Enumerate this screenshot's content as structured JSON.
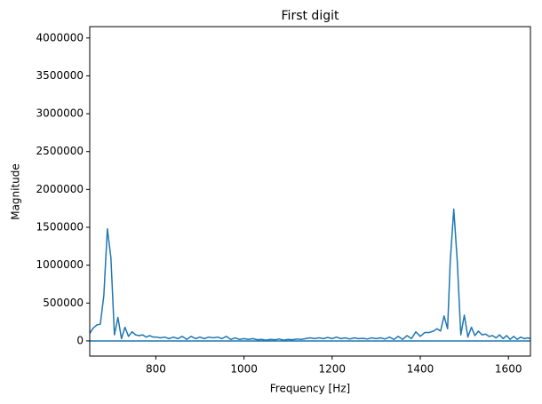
{
  "chart_data": {
    "type": "line",
    "title": "First digit",
    "x_label": "Frequency [Hz]",
    "y_label": "Magnitude",
    "x": [
      650,
      658,
      666,
      674,
      682,
      690,
      698,
      706,
      714,
      722,
      730,
      738,
      746,
      754,
      762,
      770,
      778,
      786,
      794,
      802,
      810,
      820,
      830,
      840,
      850,
      860,
      870,
      880,
      890,
      900,
      910,
      920,
      930,
      940,
      950,
      960,
      970,
      980,
      990,
      1000,
      1010,
      1020,
      1030,
      1040,
      1050,
      1060,
      1070,
      1080,
      1090,
      1100,
      1110,
      1120,
      1130,
      1140,
      1150,
      1160,
      1170,
      1180,
      1190,
      1200,
      1210,
      1220,
      1230,
      1240,
      1250,
      1260,
      1270,
      1280,
      1290,
      1300,
      1310,
      1320,
      1330,
      1340,
      1350,
      1360,
      1370,
      1380,
      1390,
      1400,
      1410,
      1420,
      1430,
      1438,
      1446,
      1454,
      1462,
      1468,
      1476,
      1484,
      1492,
      1500,
      1508,
      1516,
      1524,
      1532,
      1540,
      1548,
      1556,
      1564,
      1572,
      1580,
      1588,
      1596,
      1604,
      1612,
      1620,
      1628,
      1636,
      1644,
      1650,
      1650,
      650,
      1650
    ],
    "series": [
      {
        "color": "#1f77b4",
        "values": [
          100000,
          170000,
          210000,
          220000,
          600000,
          1480000,
          1100000,
          80000,
          310000,
          30000,
          180000,
          60000,
          120000,
          80000,
          70000,
          80000,
          50000,
          70000,
          50000,
          50000,
          40000,
          50000,
          30000,
          50000,
          30000,
          60000,
          20000,
          60000,
          30000,
          50000,
          30000,
          50000,
          40000,
          50000,
          30000,
          60000,
          20000,
          40000,
          20000,
          30000,
          20000,
          30000,
          15000,
          20000,
          10000,
          20000,
          15000,
          25000,
          10000,
          20000,
          15000,
          25000,
          20000,
          30000,
          40000,
          30000,
          40000,
          30000,
          45000,
          30000,
          50000,
          30000,
          40000,
          25000,
          40000,
          30000,
          35000,
          25000,
          40000,
          30000,
          40000,
          25000,
          50000,
          20000,
          60000,
          20000,
          70000,
          30000,
          120000,
          60000,
          110000,
          110000,
          130000,
          160000,
          130000,
          330000,
          160000,
          1050000,
          1740000,
          1050000,
          80000,
          340000,
          50000,
          180000,
          70000,
          130000,
          80000,
          90000,
          60000,
          70000,
          40000,
          80000,
          30000,
          70000,
          20000,
          60000,
          20000,
          50000,
          30000,
          40000,
          30000,
          null,
          0,
          0
        ]
      }
    ],
    "xlim": [
      650,
      1650
    ],
    "ylim": [
      -200000,
      4150000
    ],
    "xticks": [
      800,
      1000,
      1200,
      1400,
      1600
    ],
    "yticks": [
      0,
      500000,
      1000000,
      1500000,
      2000000,
      2500000,
      3000000,
      3500000,
      4000000
    ]
  }
}
